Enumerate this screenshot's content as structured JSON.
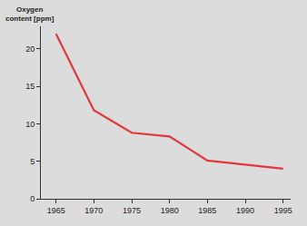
{
  "chart_data": {
    "type": "line",
    "y_label": "Oxygen content [ppm]",
    "x": [
      1965,
      1970,
      1975,
      1980,
      1985,
      1995
    ],
    "values": [
      22,
      11.8,
      8.8,
      8.3,
      5.1,
      4.0
    ],
    "color": "#e2373c",
    "xlim": [
      1963,
      1996
    ],
    "xticks": [
      1965,
      1970,
      1975,
      1980,
      1985,
      1990,
      1995
    ],
    "ylim": [
      0,
      23
    ],
    "yticks": [
      0,
      5,
      10,
      15,
      20
    ],
    "grid": false
  }
}
